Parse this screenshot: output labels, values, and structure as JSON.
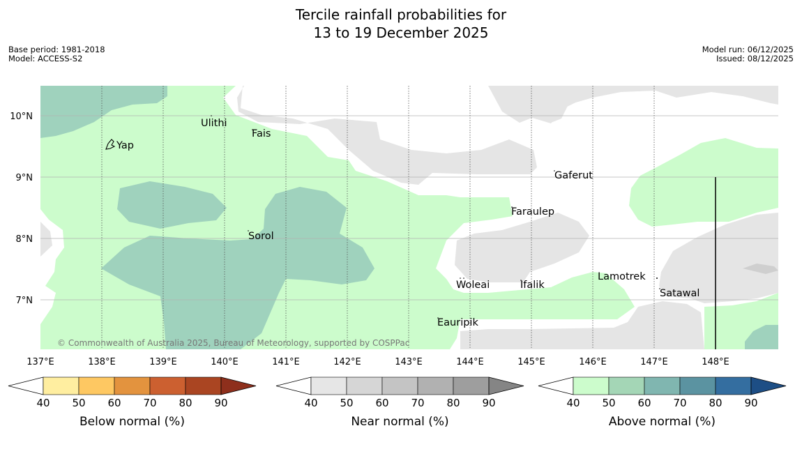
{
  "title": {
    "line1": "Tercile rainfall probabilities for",
    "line2": "13 to 19 December 2025"
  },
  "meta_left": {
    "base_period": "Base period: 1981-2018",
    "model": "Model: ACCESS-S2"
  },
  "meta_right": {
    "model_run": "Model run: 06/12/2025",
    "issued": "Issued: 08/12/2025"
  },
  "map": {
    "lon_range": [
      137,
      149
    ],
    "lat_range": [
      6.25,
      10.5
    ],
    "lon_ticks": [
      "137°E",
      "138°E",
      "139°E",
      "140°E",
      "141°E",
      "142°E",
      "143°E",
      "144°E",
      "145°E",
      "146°E",
      "147°E",
      "148°E"
    ],
    "lat_ticks": [
      "10°N",
      "9°N",
      "8°N",
      "7°N"
    ],
    "places": [
      {
        "name": "Yap"
      },
      {
        "name": "Ulithi"
      },
      {
        "name": "Fais"
      },
      {
        "name": "Gaferut"
      },
      {
        "name": "Faraulep"
      },
      {
        "name": "Sorol"
      },
      {
        "name": "Woleai"
      },
      {
        "name": "Ifalik"
      },
      {
        "name": "Lamotrek"
      },
      {
        "name": "Satawal"
      },
      {
        "name": "Eauripik"
      }
    ],
    "copyright": "© Commonwealth of Australia 2025, Bureau of Meteorology, supported by COSPPac",
    "colors": {
      "near_light": "#e5e5e5",
      "above_light": "#ccfccc",
      "above_mid": "#9fd2bd"
    }
  },
  "colorbars": [
    {
      "title": "Below normal (%)",
      "ticks": [
        "40",
        "50",
        "60",
        "70",
        "80",
        "90"
      ],
      "colors": [
        "#ffeea0",
        "#fec862",
        "#e3933e",
        "#cc6030",
        "#aa4522",
        "#8e2f1c"
      ]
    },
    {
      "title": "Near normal (%)",
      "ticks": [
        "40",
        "50",
        "60",
        "70",
        "80",
        "90"
      ],
      "colors": [
        "#e6e6e6",
        "#d6d6d6",
        "#c4c4c4",
        "#b1b1b1",
        "#9e9e9e",
        "#858585"
      ]
    },
    {
      "title": "Above normal (%)",
      "ticks": [
        "40",
        "50",
        "60",
        "70",
        "80",
        "90"
      ],
      "colors": [
        "#ccfccc",
        "#a4d6b6",
        "#80b6b0",
        "#5b93a1",
        "#346ea0",
        "#1d4e85"
      ]
    }
  ]
}
